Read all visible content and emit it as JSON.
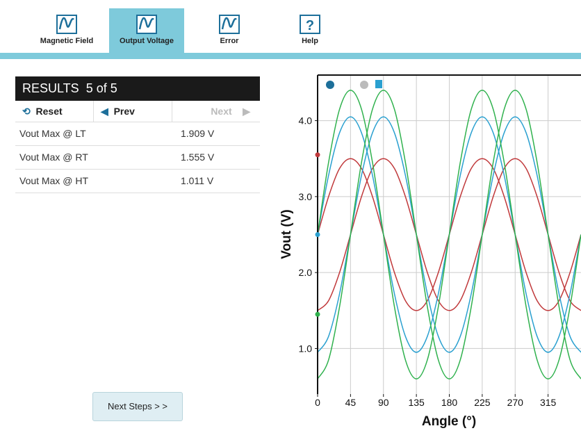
{
  "tabs": [
    "Magnetic Field",
    "Output Voltage",
    "Error",
    "Help"
  ],
  "results": {
    "title": "RESULTS",
    "count": "5 of 5",
    "buttons": {
      "reset": "Reset",
      "prev": "Prev",
      "next": "Next"
    },
    "rows": [
      [
        "Vout Max @ LT",
        "1.909 V"
      ],
      [
        "Vout Max @ RT",
        "1.555 V"
      ],
      [
        "Vout Max @ HT",
        "1.011 V"
      ]
    ]
  },
  "next_steps": "Next Steps > >",
  "chart_data": {
    "type": "line",
    "xlabel": "Angle (°)",
    "ylabel": "Vout (V)",
    "x": [
      0,
      15,
      30,
      45,
      60,
      75,
      90,
      105,
      120,
      135,
      150,
      165,
      180,
      195,
      210,
      225,
      240,
      255,
      270,
      285,
      300,
      315,
      330,
      345,
      360
    ],
    "xlim": [
      0,
      360
    ],
    "xticks": [
      0,
      45,
      90,
      135,
      180,
      225,
      270,
      315
    ],
    "ylim": [
      0.4,
      4.6
    ],
    "yticks": [
      {
        "value": 1,
        "label": "1.0"
      },
      {
        "value": 2,
        "label": "2.0"
      },
      {
        "value": 3,
        "label": "3.0"
      },
      {
        "value": 4,
        "label": "4.0"
      }
    ],
    "grid": true,
    "series": [
      {
        "color": "#c0393b",
        "values": [
          2.5,
          3,
          3.37,
          3.5,
          3.37,
          3,
          2.5,
          2,
          1.63,
          1.5,
          1.63,
          2,
          2.5,
          3,
          3.37,
          3.5,
          3.37,
          3,
          2.5,
          2,
          1.63,
          1.5,
          1.63,
          2,
          2.5
        ]
      },
      {
        "color": "#c0393b",
        "values": [
          1.5,
          1.63,
          2,
          2.5,
          3,
          3.37,
          3.5,
          3.37,
          3,
          2.5,
          2,
          1.63,
          1.5,
          1.63,
          2,
          2.5,
          3,
          3.37,
          3.5,
          3.37,
          3,
          2.5,
          2,
          1.63,
          1.5
        ]
      },
      {
        "color": "#2aa0d0",
        "values": [
          2.5,
          3.28,
          3.84,
          4.05,
          3.84,
          3.28,
          2.5,
          1.72,
          1.16,
          0.95,
          1.16,
          1.72,
          2.5,
          3.28,
          3.84,
          4.05,
          3.84,
          3.28,
          2.5,
          1.72,
          1.16,
          0.95,
          1.16,
          1.72,
          2.5
        ]
      },
      {
        "color": "#2aa0d0",
        "values": [
          0.95,
          1.16,
          1.72,
          2.5,
          3.28,
          3.84,
          4.05,
          3.84,
          3.28,
          2.5,
          1.72,
          1.16,
          0.95,
          1.16,
          1.72,
          2.5,
          3.28,
          3.84,
          4.05,
          3.84,
          3.28,
          2.5,
          1.72,
          1.16,
          0.95
        ]
      },
      {
        "color": "#2fb14d",
        "values": [
          2.5,
          3.45,
          4.15,
          4.4,
          4.15,
          3.45,
          2.5,
          1.55,
          0.85,
          0.6,
          0.85,
          1.55,
          2.5,
          3.45,
          4.15,
          4.4,
          4.15,
          3.45,
          2.5,
          1.55,
          0.85,
          0.6,
          0.85,
          1.55,
          2.5
        ]
      },
      {
        "color": "#2fb14d",
        "values": [
          0.6,
          0.85,
          1.55,
          2.5,
          3.45,
          4.15,
          4.4,
          4.15,
          3.45,
          2.5,
          1.55,
          0.85,
          0.6,
          0.85,
          1.55,
          2.5,
          3.45,
          4.15,
          4.4,
          4.15,
          3.45,
          2.5,
          1.55,
          0.85,
          0.6
        ]
      }
    ],
    "markers": [
      {
        "color": "#c0393b",
        "value": 3.55
      },
      {
        "color": "#2aa0d0",
        "value": 2.5
      },
      {
        "color": "#2fb14d",
        "value": 1.45
      }
    ]
  }
}
